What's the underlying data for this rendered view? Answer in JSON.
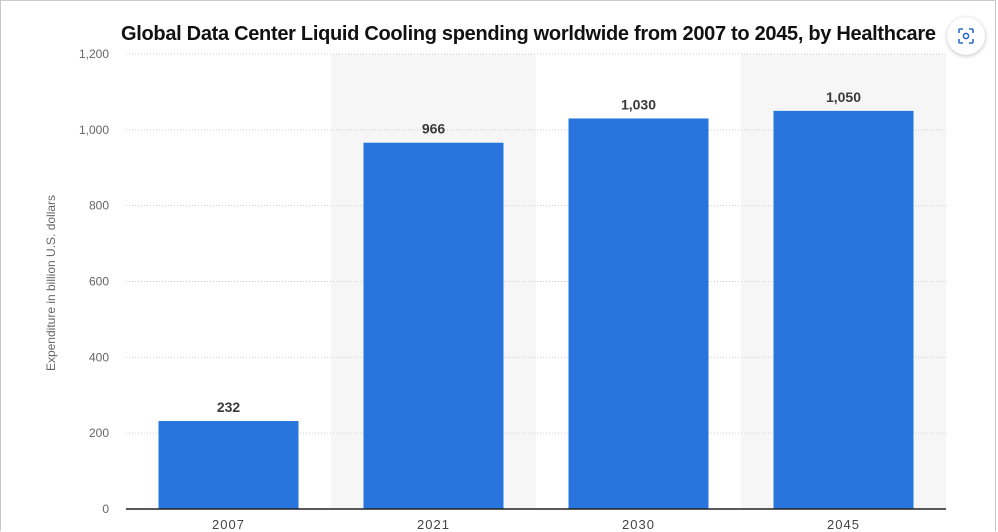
{
  "chart_data": {
    "type": "bar",
    "title": "Global Data Center Liquid Cooling spending worldwide from 2007 to 2045, by Healthcare",
    "xlabel": "",
    "ylabel": "Expenditure in billion U.S. dollars",
    "categories": [
      "2007",
      "2021",
      "2030",
      "2045"
    ],
    "values": [
      232,
      966,
      1030,
      1050
    ],
    "data_labels": [
      "232",
      "966",
      "1,030",
      "1,050"
    ],
    "ylim": [
      0,
      1200
    ],
    "yticks": [
      0,
      200,
      400,
      600,
      800,
      1000,
      1200
    ],
    "ytick_labels": [
      "0",
      "200",
      "400",
      "600",
      "800",
      "1,000",
      "1,200"
    ],
    "grid": true,
    "bar_color": "#2876dd"
  },
  "ui": {
    "corner_button_icon": "screenshot-scan-icon"
  }
}
